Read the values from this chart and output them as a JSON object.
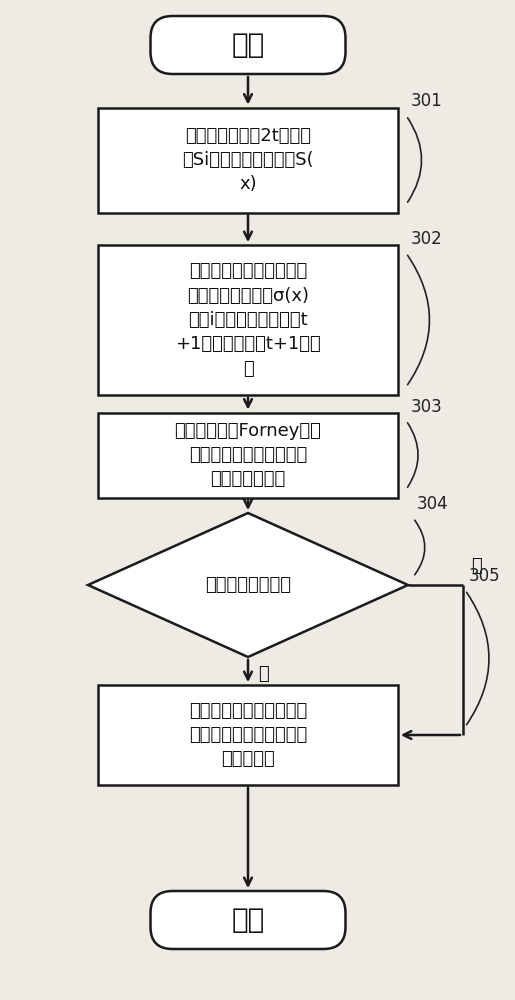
{
  "bg_color": "#eeebe5",
  "box_color": "#ffffff",
  "box_edge_color": "#1a1a1a",
  "arrow_color": "#1a1a1a",
  "text_color": "#111111",
  "label_color": "#222222",
  "start_end_text": [
    "开始",
    "结束"
  ],
  "box1_text": "对视频数据计算2t个伴随\n式Si以组成伴随多项式S(\nx)",
  "box2_text": "求解关键方程，其中在计\n算错误位置多项式σ(x)\n的第i次迭代中，分别在t\n+1个周期中计算t+1个系\n数",
  "box3_text": "使用钓搜索和Forney算法\n计算出码元的错误位置和\n相应的错误幅度",
  "diamond_text": "是否存在码元错误",
  "box5_text": "根据码元的错误位置和相\n应的错误幅度对接收的数\n据进行译码",
  "labels": [
    "301",
    "302",
    "303",
    "304",
    "305"
  ],
  "yes_label": "是",
  "no_label": "否"
}
